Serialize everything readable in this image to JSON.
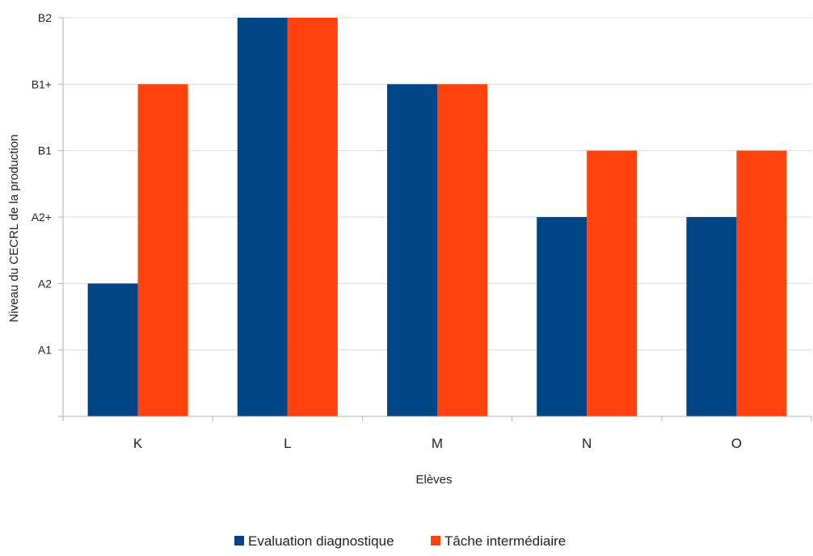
{
  "chart_data": {
    "type": "bar",
    "categories": [
      "K",
      "L",
      "M",
      "N",
      "O"
    ],
    "y_levels": [
      "A1",
      "A2",
      "A2+",
      "B1",
      "B1+",
      "B2"
    ],
    "series": [
      {
        "name": "Evaluation diagnostique",
        "values": [
          2,
          6,
          5,
          3,
          3
        ],
        "levels": [
          "A2",
          "B2",
          "B1+",
          "A2+",
          "A2+"
        ],
        "color": "#004586"
      },
      {
        "name": "Tâche intermédiaire",
        "values": [
          5,
          6,
          5,
          4,
          4
        ],
        "levels": [
          "B1+",
          "B2",
          "B1+",
          "B1",
          "B1"
        ],
        "color": "#ff420e"
      }
    ],
    "xlabel": "Elèves",
    "ylabel": "Niveau du CECRL de la production",
    "ylim": [
      0,
      6
    ],
    "grid": true,
    "legend_position": "bottom"
  }
}
